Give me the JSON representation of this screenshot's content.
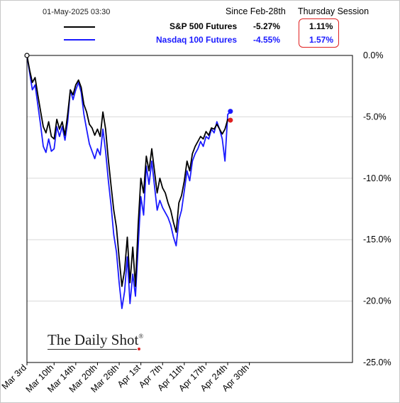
{
  "header": {
    "timestamp": "01-May-2025 03:30",
    "col_since": "Since Feb-28th",
    "col_session": "Thursday Session"
  },
  "legend": [
    {
      "name": "S&P 500 Futures",
      "since": "-5.27%",
      "session": "1.11%",
      "color": "#000000"
    },
    {
      "name": "Nasdaq 100 Futures",
      "since": "-4.55%",
      "session": "1.57%",
      "color": "#1a1aff"
    }
  ],
  "logo": {
    "text": "The Daily Shot",
    "mark": "®"
  },
  "colors": {
    "sp500": "#000000",
    "nasdaq": "#1a1aff",
    "highlight": "#e02020",
    "grid": "#d9d9d9"
  },
  "chart_data": {
    "type": "line",
    "title": "",
    "xlabel": "",
    "ylabel": "",
    "ylim": [
      -25,
      0
    ],
    "yticks": [
      0,
      -5,
      -10,
      -15,
      -20,
      -25
    ],
    "ytick_labels": [
      "0.0%",
      "-5.0%",
      "-10.0%",
      "-15.0%",
      "-20.0%",
      "-25.0%"
    ],
    "xtick_labels": [
      "Mar 3rd",
      "Mar 10th",
      "Mar 14th",
      "Mar 20th",
      "Mar 26th",
      "Apr 1st",
      "Apr 7th",
      "Apr 11th",
      "Apr 17th",
      "Apr 24th",
      "Apr 30th"
    ],
    "xlim": [
      0,
      60
    ],
    "xticks": [
      0,
      5,
      9,
      13,
      17,
      21,
      25,
      29,
      33,
      37,
      41
    ],
    "grid": true,
    "series": [
      {
        "name": "S&P 500 Futures",
        "x": [
          0,
          0.5,
          1,
          1.5,
          2,
          2.5,
          3,
          3.5,
          4,
          4.5,
          5,
          5.5,
          6,
          6.5,
          7,
          7.5,
          8,
          8.5,
          9,
          9.5,
          10,
          10.5,
          11,
          11.5,
          12,
          12.5,
          13,
          13.5,
          14,
          14.5,
          15,
          15.5,
          16,
          16.5,
          17,
          17.5,
          18,
          18.5,
          19,
          19.5,
          20,
          20.5,
          21,
          21.5,
          22,
          22.5,
          23,
          23.5,
          24,
          24.5,
          25,
          25.5,
          26,
          26.5,
          27,
          27.5,
          28,
          28.5,
          29,
          29.5,
          30,
          30.5,
          31,
          31.5,
          32,
          32.5,
          33,
          33.5,
          34,
          34.5,
          35,
          35.5,
          36,
          36.5,
          37,
          37.5,
          38,
          38.5,
          39,
          39.5,
          40,
          40.5,
          41,
          41.5,
          42,
          42.5
        ],
        "y": [
          0,
          -1.2,
          -2.2,
          -1.8,
          -3.2,
          -4.5,
          -5.8,
          -6.3,
          -5.4,
          -6.6,
          -6.8,
          -5.2,
          -6.0,
          -5.4,
          -6.5,
          -4.8,
          -2.8,
          -3.2,
          -2.4,
          -2.0,
          -2.6,
          -4.0,
          -4.6,
          -5.6,
          -5.9,
          -6.5,
          -6.0,
          -6.6,
          -4.6,
          -6.0,
          -8.5,
          -10.6,
          -12.6,
          -14.0,
          -16.5,
          -18.8,
          -17.5,
          -14.8,
          -18.5,
          -15.6,
          -18.8,
          -13.8,
          -10.0,
          -11.2,
          -8.2,
          -9.4,
          -7.6,
          -9.4,
          -11.2,
          -10.0,
          -10.8,
          -11.2,
          -12.0,
          -12.6,
          -13.6,
          -14.4,
          -12.0,
          -11.4,
          -10.2,
          -8.6,
          -9.4,
          -8.0,
          -7.4,
          -7.0,
          -6.6,
          -6.8,
          -6.2,
          -6.5,
          -5.9,
          -6.0,
          -5.6,
          -6.0,
          -6.4,
          -6.0,
          -5.2,
          -5.3,
          -5.27,
          -5.27,
          -5.27,
          -5.27,
          -5.27,
          -5.27,
          -5.27,
          -5.27,
          -5.27,
          -5.27
        ]
      },
      {
        "name": "Nasdaq 100 Futures",
        "x": [
          0,
          0.5,
          1,
          1.5,
          2,
          2.5,
          3,
          3.5,
          4,
          4.5,
          5,
          5.5,
          6,
          6.5,
          7,
          7.5,
          8,
          8.5,
          9,
          9.5,
          10,
          10.5,
          11,
          11.5,
          12,
          12.5,
          13,
          13.5,
          14,
          14.5,
          15,
          15.5,
          16,
          16.5,
          17,
          17.5,
          18,
          18.5,
          19,
          19.5,
          20,
          20.5,
          21,
          21.5,
          22,
          22.5,
          23,
          23.5,
          24,
          24.5,
          25,
          25.5,
          26,
          26.5,
          27,
          27.5,
          28,
          28.5,
          29,
          29.5,
          30,
          30.5,
          31,
          31.5,
          32,
          32.5,
          33,
          33.5,
          34,
          34.5,
          35,
          35.5,
          36,
          36.5,
          37,
          37.5,
          38,
          38.5,
          39,
          39.5,
          40,
          40.5,
          41,
          41.5,
          42,
          42.5
        ],
        "y": [
          0,
          -1.4,
          -2.8,
          -2.4,
          -4.0,
          -5.6,
          -7.4,
          -7.9,
          -6.8,
          -7.8,
          -7.6,
          -5.8,
          -6.6,
          -5.8,
          -6.9,
          -5.4,
          -2.8,
          -3.6,
          -2.8,
          -2.2,
          -3.0,
          -4.8,
          -6.0,
          -7.2,
          -7.8,
          -8.4,
          -7.6,
          -8.1,
          -6.0,
          -7.8,
          -10.2,
          -12.2,
          -14.6,
          -16.0,
          -18.5,
          -20.6,
          -19.2,
          -16.4,
          -20.2,
          -17.8,
          -19.6,
          -15.6,
          -11.5,
          -13.0,
          -9.0,
          -10.5,
          -8.6,
          -10.6,
          -12.6,
          -11.8,
          -12.4,
          -12.8,
          -13.2,
          -13.8,
          -14.8,
          -15.5,
          -13.4,
          -12.6,
          -11.0,
          -9.4,
          -10.2,
          -8.6,
          -8.0,
          -7.6,
          -7.0,
          -7.4,
          -6.6,
          -6.8,
          -6.0,
          -6.3,
          -5.4,
          -6.0,
          -6.8,
          -8.6,
          -4.8,
          -4.6,
          -4.55,
          -4.55,
          -4.55,
          -4.55,
          -4.55,
          -4.55,
          -4.55,
          -4.55,
          -4.55,
          -4.55
        ]
      }
    ],
    "end_markers": [
      {
        "series": "S&P 500 Futures",
        "x": 37.5,
        "y": -5.27,
        "color": "#e02020"
      },
      {
        "series": "Nasdaq 100 Futures",
        "x": 37.5,
        "y": -4.55,
        "color": "#1a1aff"
      }
    ]
  }
}
